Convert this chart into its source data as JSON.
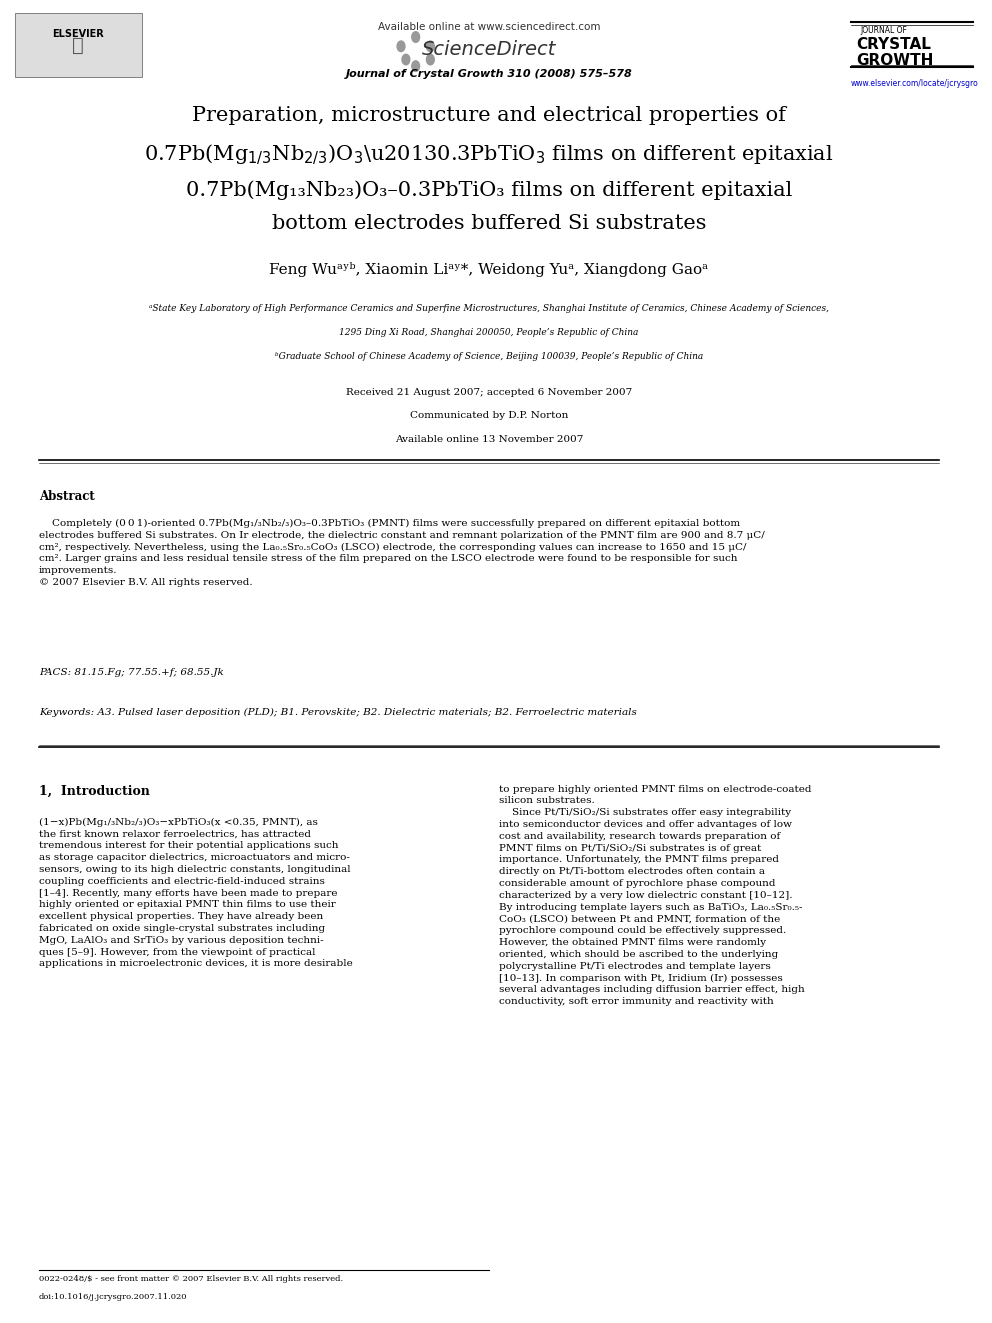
{
  "bg_color": "#ffffff",
  "page_width": 9.92,
  "page_height": 13.23,
  "header": {
    "available_online": "Available online at www.sciencedirect.com",
    "sciencedirect": "ScienceDirect",
    "journal_line": "Journal of Crystal Growth 310 (2008) 575–578",
    "journal_of": "JOURNAL OF",
    "crystal": "CRYSTAL",
    "growth": "GROWTH",
    "url": "www.elsevier.com/locate/jcrysgro",
    "elsevier": "ELSEVIER"
  },
  "title_line1": "Preparation, microstructure and electrical properties of",
  "title_line2": "0.7Pb(Mg₁₃Nb₂₃)O₃–0.3PbTiO₃ films on different epitaxial",
  "title_line2_plain": "0.7Pb(Mg",
  "title_line3": "bottom electrodes buffered Si substrates",
  "authors": "Feng Wuᵃʸᵇ, Xiaomin Liᵃʸ*, Weidong Yuᵃ, Xiangdong Gaoᵃ",
  "affil_a": "ᵃState Key Laboratory of High Performance Ceramics and Superfine Microstructures, Shanghai Institute of Ceramics, Chinese Academy of Sciences,",
  "affil_a2": "1295 Ding Xi Road, Shanghai 200050, People’s Republic of China",
  "affil_b": "ᵇGraduate School of Chinese Academy of Science, Beijing 100039, People’s Republic of China",
  "received": "Received 21 August 2007; accepted 6 November 2007",
  "communicated": "Communicated by D.P. Norton",
  "available": "Available online 13 November 2007",
  "abstract_heading": "Abstract",
  "abstract_text": "    Completely (0 0 1)-oriented 0.7Pb(Mg₁/₃Nb₂/₃)O₃–0.3PbTiO₃ (PMNT) films were successfully prepared on different epitaxial bottom\nelectrodes buffered Si substrates. On Ir electrode, the dielectric constant and remnant polarization of the PMNT film are 900 and 8.7 μC/\ncm², respectively. Nevertheless, using the La₀.₅Sr₀.₅CoO₃ (LSCO) electrode, the corresponding values can increase to 1650 and 15 μC/\ncm². Larger grains and less residual tensile stress of the film prepared on the LSCO electrode were found to be responsible for such\nimprovements.\n© 2007 Elsevier B.V. All rights reserved.",
  "pacs_label": "PACS:",
  "pacs_text": " 81.15.Fg; 77.55.+f; 68.55.Jk",
  "keywords_label": "Keywords:",
  "keywords_text": " A3. Pulsed laser deposition (PLD); B1. Perovskite; B2. Dielectric materials; B2. Ferroelectric materials",
  "section1_heading": "1,  Introduction",
  "intro_left": "(1−x)Pb(Mg₁/₃Nb₂/₃)O₃−xPbTiO₃(x <0.35, PMNT), as\nthe first known relaxor ferroelectrics, has attracted\ntremendous interest for their potential applications such\nas storage capacitor dielectrics, microactuators and micro-\nsensors, owing to its high dielectric constants, longitudinal\ncoupling coefficients and electric-field-induced strains\n[1–4]. Recently, many efforts have been made to prepare\nhighly oriented or epitaxial PMNT thin films to use their\nexcellent physical properties. They have already been\nfabricated on oxide single-crystal substrates including\nMgO, LaAlO₃ and SrTiO₃ by various deposition techni-\nques [5–9]. However, from the viewpoint of practical\napplications in microelectronic devices, it is more desirable",
  "intro_right": "to prepare highly oriented PMNT films on electrode-coated\nsilicon substrates.\n    Since Pt/Ti/SiO₂/Si substrates offer easy integrability\ninto semiconductor devices and offer advantages of low\ncost and availability, research towards preparation of\nPMNT films on Pt/Ti/SiO₂/Si substrates is of great\nimportance. Unfortunately, the PMNT films prepared\ndirectly on Pt/Ti-bottom electrodes often contain a\nconsiderable amount of pyrochlore phase compound\ncharacterized by a very low dielectric constant [10–12].\nBy introducing template layers such as BaTiO₃, La₀.₅Sr₀.₅-\nCoO₃ (LSCO) between Pt and PMNT, formation of the\npyrochlore compound could be effectively suppressed.\nHowever, the obtained PMNT films were randomly\noriented, which should be ascribed to the underlying\npolycrystalline Pt/Ti electrodes and template layers\n[10–13]. In comparison with Pt, Iridium (Ir) possesses\nseveral advantages including diffusion barrier effect, high\nconductivity, soft error immunity and reactivity with",
  "footer_left": "0022-0248/$ - see front matter © 2007 Elsevier B.V. All rights reserved.\ndoi:10.1016/j.jcrysgro.2007.11.020",
  "colors": {
    "text": "#000000",
    "url_blue": "#0000cc",
    "header_gray": "#888888",
    "line_color": "#000000"
  }
}
